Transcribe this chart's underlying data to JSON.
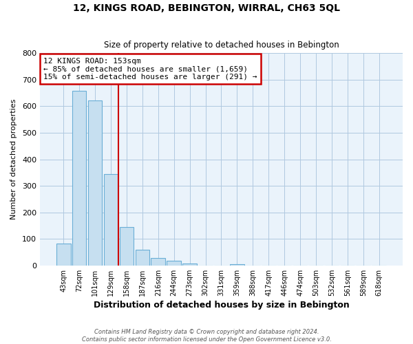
{
  "title": "12, KINGS ROAD, BEBINGTON, WIRRAL, CH63 5QL",
  "subtitle": "Size of property relative to detached houses in Bebington",
  "xlabel": "Distribution of detached houses by size in Bebington",
  "ylabel": "Number of detached properties",
  "footer_line1": "Contains HM Land Registry data © Crown copyright and database right 2024.",
  "footer_line2": "Contains public sector information licensed under the Open Government Licence v3.0.",
  "bin_labels": [
    "43sqm",
    "72sqm",
    "101sqm",
    "129sqm",
    "158sqm",
    "187sqm",
    "216sqm",
    "244sqm",
    "273sqm",
    "302sqm",
    "331sqm",
    "359sqm",
    "388sqm",
    "417sqm",
    "446sqm",
    "474sqm",
    "503sqm",
    "532sqm",
    "561sqm",
    "589sqm",
    "618sqm"
  ],
  "bar_values": [
    83,
    657,
    622,
    345,
    145,
    60,
    27,
    18,
    8,
    0,
    0,
    6,
    0,
    0,
    0,
    0,
    0,
    0,
    0,
    0,
    0
  ],
  "bar_color": "#c6dff0",
  "bar_edgecolor": "#6aaed6",
  "vline_x": 3.5,
  "vline_color": "#cc0000",
  "annotation_text": "12 KINGS ROAD: 153sqm\n← 85% of detached houses are smaller (1,659)\n15% of semi-detached houses are larger (291) →",
  "annotation_box_edgecolor": "#cc0000",
  "annotation_box_facecolor": "#ffffff",
  "ylim": [
    0,
    800
  ],
  "background_color": "#ffffff",
  "plot_bg_color": "#eaf3fb",
  "grid_color": "#b0c8e0"
}
